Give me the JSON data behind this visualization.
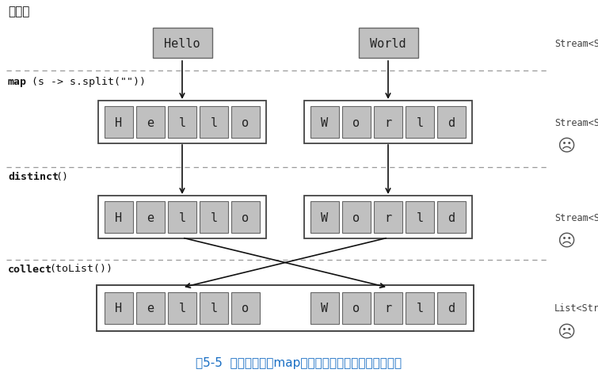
{
  "title": "图5-5  不正确地使用map找出单词列表中各不相同的字符",
  "title_color": "#1a6fc4",
  "bg_color": "#ffffff",
  "label_top": "单词流",
  "hello_chars": [
    "H",
    "e",
    "l",
    "l",
    "o"
  ],
  "world_chars": [
    "W",
    "o",
    "r",
    "l",
    "d"
  ],
  "box_fill": "#c0c0c0",
  "box_edge": "#666666",
  "outer_box_fill": "#ffffff",
  "outer_box_edge": "#444444",
  "dashed_line_color": "#999999",
  "arrow_color": "#111111",
  "sad_face": "☹",
  "stream_labels": [
    "Stream<String>",
    "Stream<String[]>",
    "Stream<String[]>",
    "List<String[]>"
  ]
}
